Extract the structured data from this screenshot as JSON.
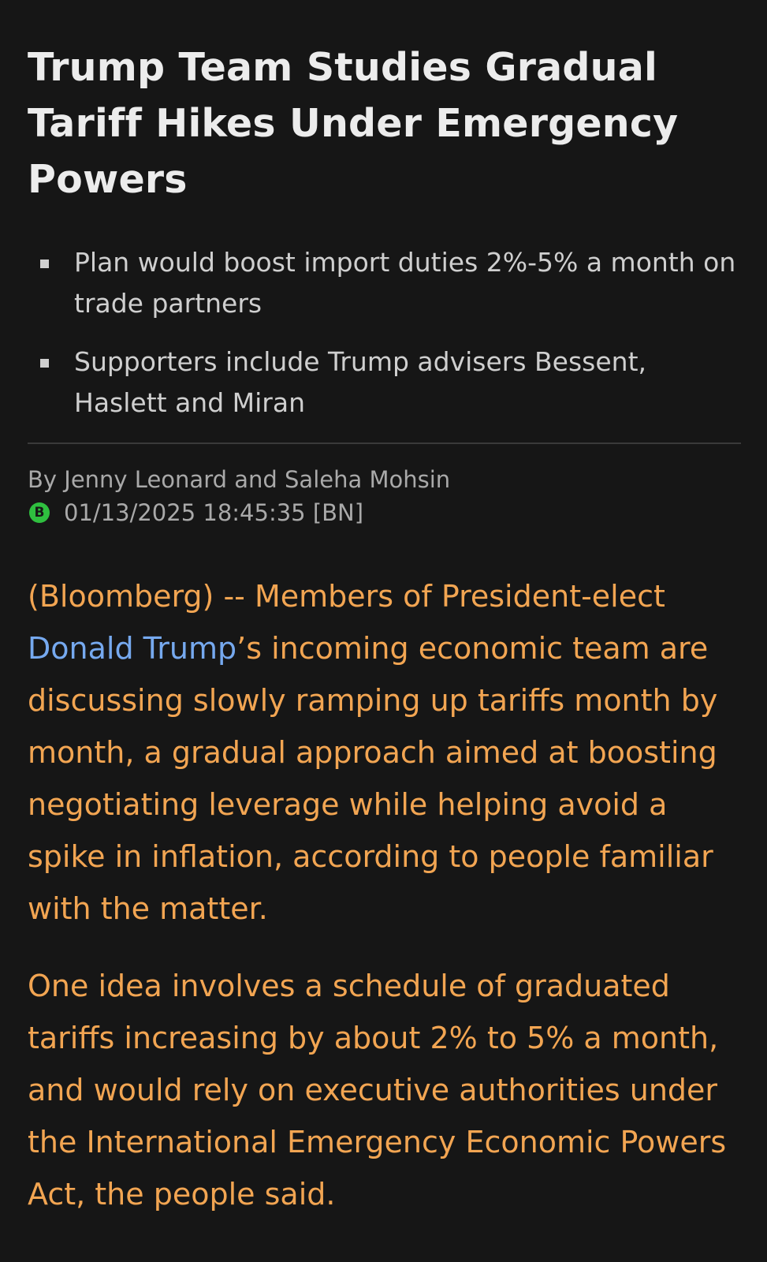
{
  "article": {
    "headline": "Trump Team Studies Gradual Tariff Hikes Under Emergency Powers",
    "bullets": [
      "Plan would boost import duties 2%-5% a month on trade partners",
      "Supporters include Trump advisers Bessent, Haslett and Miran"
    ],
    "byline": "By Jenny Leonard and Saleha Mohsin",
    "source_icon_label": "B",
    "timestamp": "01/13/2025 18:45:35 [BN]",
    "paragraph1": {
      "lead": "(Bloomberg) -- Members of President-elect ",
      "link_text": "Donald Trump",
      "rest": "’s incoming economic team are discussing slowly ramping up tariffs month by month, a gradual approach aimed at boosting negotiating leverage while helping avoid a spike in inflation, according to people familiar with the matter."
    },
    "paragraph2": "One idea involves a schedule of graduated tariffs increasing by about 2% to 5% a month, and would rely on executive authorities under the International Emergency Economic Powers Act, the people said."
  },
  "colors": {
    "background": "#161616",
    "headline": "#ececec",
    "body_text": "#f2a552",
    "link": "#76a9ef",
    "source_icon": "#2fbf3f"
  },
  "icons": {
    "source": "bloomberg-source-icon",
    "bullet": "square-bullet-icon"
  }
}
